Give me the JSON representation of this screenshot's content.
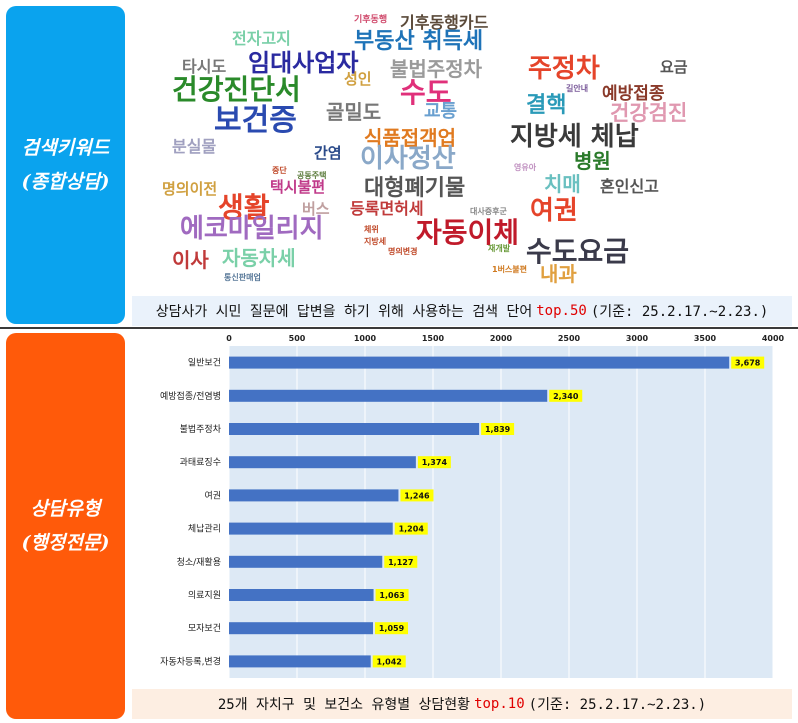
{
  "side_labels": {
    "top": [
      "검색키워드",
      "(종합상담)"
    ],
    "bottom": [
      "상담유형",
      "(행정전문)"
    ]
  },
  "wordcloud": {
    "words": [
      {
        "text": "기후동행",
        "color": "#d04a6c",
        "size": 9
      },
      {
        "text": "기후동행카드",
        "color": "#5b4a3a",
        "size": 16
      },
      {
        "text": "전자고지",
        "color": "#7ad0a8",
        "size": 16
      },
      {
        "text": "부동산 취득세",
        "color": "#1e73b8",
        "size": 22
      },
      {
        "text": "타시도",
        "color": "#777777",
        "size": 16
      },
      {
        "text": "임대사업자",
        "color": "#2a2aa0",
        "size": 24
      },
      {
        "text": "불법주정차",
        "color": "#9a9a9a",
        "size": 20
      },
      {
        "text": "주정차",
        "color": "#e5442a",
        "size": 26
      },
      {
        "text": "요금",
        "color": "#555555",
        "size": 15
      },
      {
        "text": "성인",
        "color": "#d0a040",
        "size": 15
      },
      {
        "text": "길안내",
        "color": "#7a5a9a",
        "size": 8
      },
      {
        "text": "예방접종",
        "color": "#8a3a2a",
        "size": 17
      },
      {
        "text": "건강진단서",
        "color": "#2a8a2a",
        "size": 28
      },
      {
        "text": "수도",
        "color": "#e0307a",
        "size": 28
      },
      {
        "text": "결핵",
        "color": "#2a9ab8",
        "size": 22
      },
      {
        "text": "건강검진",
        "color": "#e098b0",
        "size": 21
      },
      {
        "text": "보건증",
        "color": "#2a4ab0",
        "size": 30
      },
      {
        "text": "골밀도",
        "color": "#777777",
        "size": 20
      },
      {
        "text": "교통",
        "color": "#6aa0d0",
        "size": 18
      },
      {
        "text": "식품접객업",
        "color": "#e07a20",
        "size": 20
      },
      {
        "text": "지방세 체납",
        "color": "#3a3a3a",
        "size": 26
      },
      {
        "text": "분실물",
        "color": "#a0a0c0",
        "size": 16
      },
      {
        "text": "간염",
        "color": "#2a4a8a",
        "size": 15
      },
      {
        "text": "이사정산",
        "color": "#8aa8c8",
        "size": 26
      },
      {
        "text": "병원",
        "color": "#2a7a2a",
        "size": 20
      },
      {
        "text": "중단",
        "color": "#c04a2a",
        "size": 8
      },
      {
        "text": "공동주택",
        "color": "#5a7a3a",
        "size": 8
      },
      {
        "text": "영유아",
        "color": "#c090c0",
        "size": 8
      },
      {
        "text": "명의이전",
        "color": "#d0a040",
        "size": 15
      },
      {
        "text": "택시불편",
        "color": "#c03a8a",
        "size": 15
      },
      {
        "text": "대형폐기물",
        "color": "#555555",
        "size": 22
      },
      {
        "text": "치매",
        "color": "#6ac0c0",
        "size": 20
      },
      {
        "text": "혼인신고",
        "color": "#555555",
        "size": 16
      },
      {
        "text": "생활",
        "color": "#e5442a",
        "size": 28
      },
      {
        "text": "버스",
        "color": "#c0a0a0",
        "size": 15
      },
      {
        "text": "등록면허세",
        "color": "#c03a3a",
        "size": 16
      },
      {
        "text": "대사증후군",
        "color": "#888888",
        "size": 8
      },
      {
        "text": "여권",
        "color": "#e5442a",
        "size": 26
      },
      {
        "text": "에코마일리지",
        "color": "#a06ac0",
        "size": 26
      },
      {
        "text": "체위",
        "color": "#c04a2a",
        "size": 8
      },
      {
        "text": "지방세",
        "color": "#c04a2a",
        "size": 8
      },
      {
        "text": "자동이체",
        "color": "#c01a2a",
        "size": 28
      },
      {
        "text": "재개발",
        "color": "#6a9a3a",
        "size": 8
      },
      {
        "text": "이사",
        "color": "#c03a3a",
        "size": 20
      },
      {
        "text": "자동차세",
        "color": "#7ad0a8",
        "size": 20
      },
      {
        "text": "명의변경",
        "color": "#c04a2a",
        "size": 8
      },
      {
        "text": "수도요금",
        "color": "#3a3a4a",
        "size": 28
      },
      {
        "text": "통신판매업",
        "color": "#5a7a9a",
        "size": 8
      },
      {
        "text": "1버스불편",
        "color": "#d07a20",
        "size": 8
      },
      {
        "text": "내과",
        "color": "#e0a040",
        "size": 20
      }
    ]
  },
  "captions": {
    "top": {
      "before": "상담사가 시민 질문에 답변을 하기 위해 사용하는 검색 단어",
      "highlight": "top.50",
      "after": "(기준: 25.2.17.~2.23.)"
    },
    "bottom": {
      "before": "25개 자치구 및 보건소 유형별 상담현황",
      "highlight": "top.10",
      "after": "(기준: 25.2.17.~2.23.)"
    }
  },
  "colors": {
    "bar": "#4472c4",
    "plot_bg": "#dde9f5",
    "label_bg": "#ffff00",
    "gridline": "#ffffff"
  },
  "chart_data": {
    "type": "bar",
    "orientation": "horizontal",
    "categories": [
      "일반보건",
      "예방접종/전염병",
      "불법주정차",
      "과태료징수",
      "여권",
      "체납관리",
      "청소/재활용",
      "의료지원",
      "모자보건",
      "자동차등록,변경"
    ],
    "values": [
      3678,
      2340,
      1839,
      1374,
      1246,
      1204,
      1127,
      1063,
      1059,
      1042
    ],
    "value_labels": [
      "3,678",
      "2,340",
      "1,839",
      "1,374",
      "1,246",
      "1,204",
      "1,127",
      "1,063",
      "1,059",
      "1,042"
    ],
    "ticks": [
      0,
      500,
      1000,
      1500,
      2000,
      2500,
      3000,
      3500,
      4000
    ],
    "tick_labels": [
      "0",
      "500",
      "1000",
      "1500",
      "2000",
      "2500",
      "3000",
      "3500",
      "4000"
    ],
    "xlim": [
      0,
      4000
    ],
    "axis_position": "top",
    "grid": true,
    "title": "",
    "xlabel": "",
    "ylabel": ""
  }
}
